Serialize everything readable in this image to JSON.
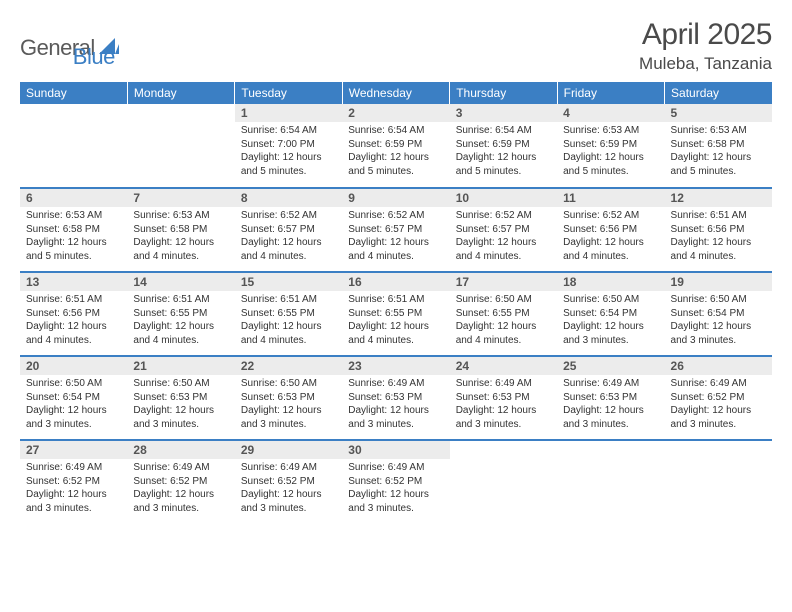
{
  "brand": {
    "part1": "General",
    "part2": "Blue"
  },
  "title": "April 2025",
  "location": "Muleba, Tanzania",
  "colors": {
    "header_bg": "#3b7fc4",
    "header_fg": "#ffffff",
    "daynum_bg": "#ececec",
    "daynum_fg": "#555555",
    "body_fg": "#333333",
    "rule": "#3b7fc4",
    "page_bg": "#ffffff",
    "title_fg": "#4a4a4a"
  },
  "typography": {
    "title_fontsize": 30,
    "location_fontsize": 17,
    "header_fontsize": 12,
    "daynum_fontsize": 12,
    "body_fontsize": 10
  },
  "columns": [
    "Sunday",
    "Monday",
    "Tuesday",
    "Wednesday",
    "Thursday",
    "Friday",
    "Saturday"
  ],
  "weeks": [
    [
      null,
      null,
      {
        "n": "1",
        "sunrise": "6:54 AM",
        "sunset": "7:00 PM",
        "daylight": "12 hours and 5 minutes."
      },
      {
        "n": "2",
        "sunrise": "6:54 AM",
        "sunset": "6:59 PM",
        "daylight": "12 hours and 5 minutes."
      },
      {
        "n": "3",
        "sunrise": "6:54 AM",
        "sunset": "6:59 PM",
        "daylight": "12 hours and 5 minutes."
      },
      {
        "n": "4",
        "sunrise": "6:53 AM",
        "sunset": "6:59 PM",
        "daylight": "12 hours and 5 minutes."
      },
      {
        "n": "5",
        "sunrise": "6:53 AM",
        "sunset": "6:58 PM",
        "daylight": "12 hours and 5 minutes."
      }
    ],
    [
      {
        "n": "6",
        "sunrise": "6:53 AM",
        "sunset": "6:58 PM",
        "daylight": "12 hours and 5 minutes."
      },
      {
        "n": "7",
        "sunrise": "6:53 AM",
        "sunset": "6:58 PM",
        "daylight": "12 hours and 4 minutes."
      },
      {
        "n": "8",
        "sunrise": "6:52 AM",
        "sunset": "6:57 PM",
        "daylight": "12 hours and 4 minutes."
      },
      {
        "n": "9",
        "sunrise": "6:52 AM",
        "sunset": "6:57 PM",
        "daylight": "12 hours and 4 minutes."
      },
      {
        "n": "10",
        "sunrise": "6:52 AM",
        "sunset": "6:57 PM",
        "daylight": "12 hours and 4 minutes."
      },
      {
        "n": "11",
        "sunrise": "6:52 AM",
        "sunset": "6:56 PM",
        "daylight": "12 hours and 4 minutes."
      },
      {
        "n": "12",
        "sunrise": "6:51 AM",
        "sunset": "6:56 PM",
        "daylight": "12 hours and 4 minutes."
      }
    ],
    [
      {
        "n": "13",
        "sunrise": "6:51 AM",
        "sunset": "6:56 PM",
        "daylight": "12 hours and 4 minutes."
      },
      {
        "n": "14",
        "sunrise": "6:51 AM",
        "sunset": "6:55 PM",
        "daylight": "12 hours and 4 minutes."
      },
      {
        "n": "15",
        "sunrise": "6:51 AM",
        "sunset": "6:55 PM",
        "daylight": "12 hours and 4 minutes."
      },
      {
        "n": "16",
        "sunrise": "6:51 AM",
        "sunset": "6:55 PM",
        "daylight": "12 hours and 4 minutes."
      },
      {
        "n": "17",
        "sunrise": "6:50 AM",
        "sunset": "6:55 PM",
        "daylight": "12 hours and 4 minutes."
      },
      {
        "n": "18",
        "sunrise": "6:50 AM",
        "sunset": "6:54 PM",
        "daylight": "12 hours and 3 minutes."
      },
      {
        "n": "19",
        "sunrise": "6:50 AM",
        "sunset": "6:54 PM",
        "daylight": "12 hours and 3 minutes."
      }
    ],
    [
      {
        "n": "20",
        "sunrise": "6:50 AM",
        "sunset": "6:54 PM",
        "daylight": "12 hours and 3 minutes."
      },
      {
        "n": "21",
        "sunrise": "6:50 AM",
        "sunset": "6:53 PM",
        "daylight": "12 hours and 3 minutes."
      },
      {
        "n": "22",
        "sunrise": "6:50 AM",
        "sunset": "6:53 PM",
        "daylight": "12 hours and 3 minutes."
      },
      {
        "n": "23",
        "sunrise": "6:49 AM",
        "sunset": "6:53 PM",
        "daylight": "12 hours and 3 minutes."
      },
      {
        "n": "24",
        "sunrise": "6:49 AM",
        "sunset": "6:53 PM",
        "daylight": "12 hours and 3 minutes."
      },
      {
        "n": "25",
        "sunrise": "6:49 AM",
        "sunset": "6:53 PM",
        "daylight": "12 hours and 3 minutes."
      },
      {
        "n": "26",
        "sunrise": "6:49 AM",
        "sunset": "6:52 PM",
        "daylight": "12 hours and 3 minutes."
      }
    ],
    [
      {
        "n": "27",
        "sunrise": "6:49 AM",
        "sunset": "6:52 PM",
        "daylight": "12 hours and 3 minutes."
      },
      {
        "n": "28",
        "sunrise": "6:49 AM",
        "sunset": "6:52 PM",
        "daylight": "12 hours and 3 minutes."
      },
      {
        "n": "29",
        "sunrise": "6:49 AM",
        "sunset": "6:52 PM",
        "daylight": "12 hours and 3 minutes."
      },
      {
        "n": "30",
        "sunrise": "6:49 AM",
        "sunset": "6:52 PM",
        "daylight": "12 hours and 3 minutes."
      },
      null,
      null,
      null
    ]
  ],
  "labels": {
    "sunrise": "Sunrise:",
    "sunset": "Sunset:",
    "daylight": "Daylight:"
  }
}
